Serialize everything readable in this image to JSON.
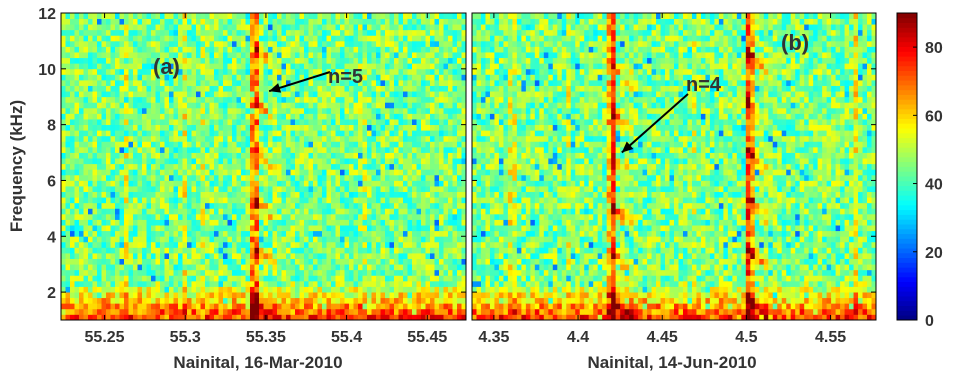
{
  "chart_data": [
    {
      "type": "heatmap",
      "panel_label": "(a)",
      "xlabel": "Nainital, 16-Mar-2010",
      "ylabel": "Frequency (kHz)",
      "xlim": [
        55.223,
        55.474
      ],
      "ylim": [
        1,
        12
      ],
      "xticks": [
        "55.25",
        "55.3",
        "55.35",
        "55.4",
        "55.45"
      ],
      "xtick_values": [
        55.25,
        55.3,
        55.35,
        55.4,
        55.45
      ],
      "yticks": [
        "2",
        "4",
        "6",
        "8",
        "10",
        "12"
      ],
      "ytick_values": [
        2,
        4,
        6,
        8,
        10,
        12
      ],
      "annotation": {
        "text": "n=5",
        "arrow_to": {
          "x": 55.352,
          "y": 9.2
        }
      },
      "whistler": {
        "time": 55.343,
        "harmonic_peaks_khz": [
          1.8,
          3.6,
          5.3,
          7.1,
          8.9,
          10.8
        ]
      },
      "faint_vertical_lines": [
        55.264,
        55.31,
        55.3,
        55.41
      ]
    },
    {
      "type": "heatmap",
      "panel_label": "(b)",
      "xlabel": "Nainital, 14-Jun-2010",
      "xlim": [
        4.337,
        4.577
      ],
      "ylim": [
        1,
        12
      ],
      "xticks": [
        "4.35",
        "4.4",
        "4.45",
        "4.5",
        "4.55"
      ],
      "xtick_values": [
        4.35,
        4.4,
        4.45,
        4.5,
        4.55
      ],
      "yticks": [
        "2",
        "4",
        "6",
        "8",
        "10",
        "12"
      ],
      "ytick_values": [
        2,
        4,
        6,
        8,
        10,
        12
      ],
      "annotation": {
        "text": "n=4",
        "arrow_to": {
          "x": 4.426,
          "y": 7.0
        }
      },
      "whistlers": [
        {
          "time": 4.42,
          "harmonic_peaks_khz": [
            1.8,
            3.4,
            5.1,
            6.8,
            8.5,
            10.2
          ]
        },
        {
          "time": 4.502,
          "harmonic_peaks_khz": [
            1.8,
            3.5,
            5.3,
            7.0,
            8.7,
            10.5
          ]
        }
      ],
      "faint_vertical_lines": [
        4.363,
        4.36,
        4.395,
        4.47,
        4.565
      ]
    }
  ],
  "colorbar": {
    "range": [
      0,
      90
    ],
    "ticks": [
      "0",
      "20",
      "40",
      "60",
      "80"
    ],
    "tick_values": [
      0,
      20,
      40,
      60,
      80
    ],
    "colormap": "jet"
  },
  "colors": {
    "background_level": 45,
    "text": "#333333"
  }
}
